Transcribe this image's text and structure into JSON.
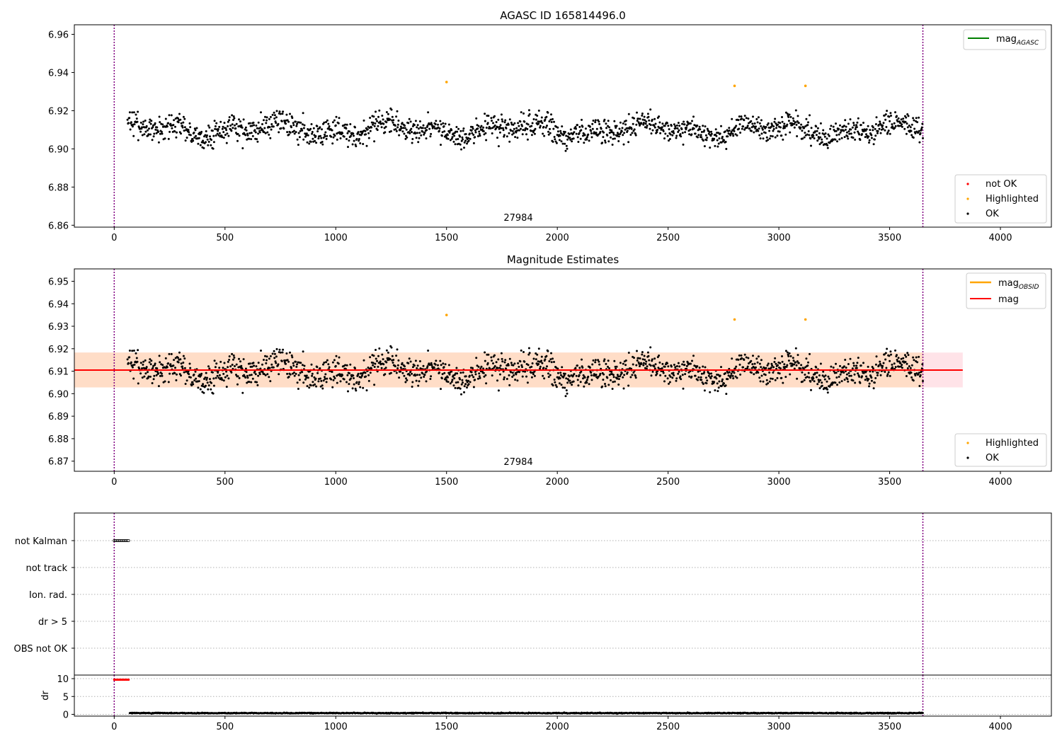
{
  "chart_data": [
    {
      "type": "scatter",
      "title": "AGASC ID 165814496.0",
      "xlim": [
        -180,
        4230
      ],
      "ylim": [
        6.859,
        6.965
      ],
      "x_ticks": [
        "0",
        "500",
        "1000",
        "1500",
        "2000",
        "2500",
        "3000",
        "3500",
        "4000"
      ],
      "y_ticks": [
        "6.86",
        "6.88",
        "6.90",
        "6.92",
        "6.94",
        "6.96"
      ],
      "annotation": "27984",
      "vlines": [
        0,
        3650
      ],
      "legend_upper": [
        "mag_AGASC"
      ],
      "legend_lower": [
        "not OK",
        "Highlighted",
        "OK"
      ],
      "series": [
        {
          "name": "OK",
          "color": "#000000",
          "x_range": [
            60,
            3650
          ],
          "center": 6.91,
          "spread": 0.006,
          "n": 1700
        },
        {
          "name": "Highlighted",
          "color": "#ffa500",
          "points": [
            [
              1500,
              6.935
            ],
            [
              2800,
              6.933
            ],
            [
              3120,
              6.933
            ]
          ]
        },
        {
          "name": "not OK",
          "color": "#ff0000",
          "points": []
        }
      ]
    },
    {
      "type": "scatter",
      "title": "Magnitude Estimates",
      "xlim": [
        -180,
        4230
      ],
      "ylim": [
        6.8655,
        6.9555
      ],
      "x_ticks": [
        "0",
        "500",
        "1000",
        "1500",
        "2000",
        "2500",
        "3000",
        "3500",
        "4000"
      ],
      "y_ticks": [
        "6.87",
        "6.88",
        "6.89",
        "6.90",
        "6.91",
        "6.92",
        "6.93",
        "6.94",
        "6.95"
      ],
      "annotation": "27984",
      "vlines": [
        0,
        3650
      ],
      "mag_line": 6.9105,
      "mag_band": [
        6.9028,
        6.9183
      ],
      "mag_band_xrange": [
        -180,
        3830
      ],
      "obsid_band_xrange": [
        -180,
        3650
      ],
      "legend_upper": [
        "mag_OBSID",
        "mag"
      ],
      "legend_lower": [
        "Highlighted",
        "OK"
      ],
      "series": [
        {
          "name": "OK",
          "color": "#000000",
          "x_range": [
            60,
            3650
          ],
          "center": 6.91,
          "spread": 0.006,
          "n": 1700
        },
        {
          "name": "Highlighted",
          "color": "#ffa500",
          "points": [
            [
              1500,
              6.935
            ],
            [
              2800,
              6.933
            ],
            [
              3120,
              6.933
            ]
          ]
        }
      ]
    },
    {
      "type": "scatter",
      "xlim": [
        -180,
        4230
      ],
      "categories": [
        "not Kalman",
        "not track",
        "Ion. rad.",
        "dr > 5",
        "OBS not OK"
      ],
      "vlines": [
        0,
        3650
      ],
      "flags": [
        {
          "category": "not Kalman",
          "x_range": [
            0,
            65
          ],
          "count": 14
        }
      ]
    },
    {
      "type": "scatter",
      "ylabel": "dr",
      "xlim": [
        -180,
        4230
      ],
      "ylim": [
        -0.5,
        11
      ],
      "y_ticks": [
        "0",
        "5",
        "10"
      ],
      "x_ticks": [
        "0",
        "500",
        "1000",
        "1500",
        "2000",
        "2500",
        "3000",
        "3500",
        "4000"
      ],
      "vlines": [
        0,
        3650
      ],
      "series": [
        {
          "name": "dr",
          "color": "#000000",
          "x_range": [
            70,
            3650
          ],
          "center": 0.35,
          "spread": 0.15,
          "n": 1700
        },
        {
          "name": "dr not OK",
          "color": "#ff0000",
          "x_range": [
            0,
            65
          ],
          "value": 9.7,
          "n": 14
        }
      ]
    }
  ],
  "colors": {
    "mag_agasc": "#008000",
    "mag_obsid": "#ffa500",
    "mag": "#ff0000",
    "vline": "#800080",
    "band_mag": "#ffc0cb",
    "band_obsid": "#ffdab9",
    "grid": "#b0b0b0"
  }
}
